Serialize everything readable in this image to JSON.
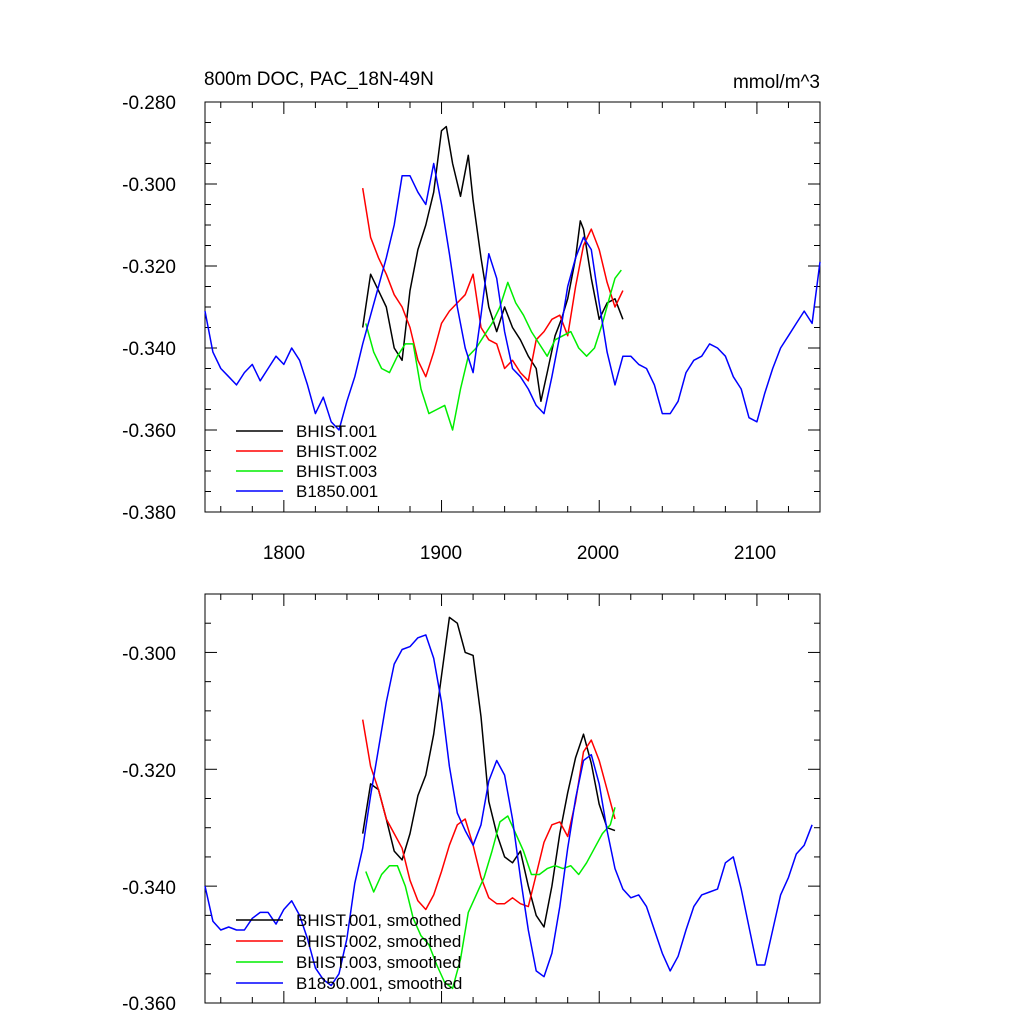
{
  "colors": {
    "BHIST.001": "#000000",
    "BHIST.002": "#ff0000",
    "BHIST.003": "#00ee00",
    "B1850.001": "#0000ff"
  },
  "top": {
    "title_left": "800m DOC, PAC_18N-49N",
    "title_right": "mmol/m^3",
    "legend": [
      "BHIST.001",
      "BHIST.002",
      "BHIST.003",
      "B1850.001"
    ]
  },
  "bottom": {
    "legend": [
      "BHIST.001, smoothed",
      "BHIST.002, smoothed",
      "BHIST.003, smoothed",
      "B1850.001, smoothed"
    ]
  },
  "chart_data": [
    {
      "type": "line",
      "title": "800m DOC, PAC_18N-49N",
      "units": "mmol/m^3",
      "xlim": [
        1750,
        2140
      ],
      "ylim": [
        -0.38,
        -0.28
      ],
      "xticks": [
        "1800",
        "1900",
        "2000",
        "2100"
      ],
      "yticks": [
        "-0.280",
        "-0.300",
        "-0.320",
        "-0.340",
        "-0.360",
        "-0.380"
      ],
      "legend_position": "bottom-left",
      "series": [
        {
          "name": "BHIST.001",
          "x": [
            1850,
            1855,
            1860,
            1865,
            1870,
            1875,
            1880,
            1885,
            1890,
            1895,
            1900,
            1903,
            1907,
            1912,
            1917,
            1920,
            1925,
            1930,
            1935,
            1940,
            1945,
            1950,
            1955,
            1960,
            1963,
            1967,
            1972,
            1976,
            1980,
            1985,
            1988,
            1990,
            1995,
            2000,
            2005,
            2010,
            2015
          ],
          "y": [
            -0.335,
            -0.322,
            -0.326,
            -0.33,
            -0.34,
            -0.343,
            -0.326,
            -0.316,
            -0.31,
            -0.302,
            -0.287,
            -0.286,
            -0.295,
            -0.303,
            -0.293,
            -0.304,
            -0.318,
            -0.33,
            -0.336,
            -0.33,
            -0.335,
            -0.338,
            -0.342,
            -0.345,
            -0.353,
            -0.346,
            -0.337,
            -0.333,
            -0.328,
            -0.318,
            -0.309,
            -0.311,
            -0.323,
            -0.333,
            -0.329,
            -0.328,
            -0.333
          ]
        },
        {
          "name": "BHIST.002",
          "x": [
            1850,
            1855,
            1860,
            1865,
            1870,
            1875,
            1880,
            1885,
            1890,
            1895,
            1900,
            1905,
            1910,
            1915,
            1920,
            1925,
            1930,
            1935,
            1940,
            1945,
            1950,
            1955,
            1960,
            1965,
            1970,
            1975,
            1980,
            1985,
            1990,
            1995,
            2000,
            2005,
            2010,
            2015
          ],
          "y": [
            -0.301,
            -0.313,
            -0.318,
            -0.322,
            -0.327,
            -0.33,
            -0.335,
            -0.343,
            -0.347,
            -0.341,
            -0.334,
            -0.331,
            -0.329,
            -0.327,
            -0.322,
            -0.335,
            -0.338,
            -0.339,
            -0.345,
            -0.343,
            -0.346,
            -0.348,
            -0.338,
            -0.336,
            -0.333,
            -0.332,
            -0.337,
            -0.325,
            -0.315,
            -0.311,
            -0.316,
            -0.324,
            -0.33,
            -0.326
          ]
        },
        {
          "name": "BHIST.003",
          "x": [
            1852,
            1857,
            1862,
            1867,
            1872,
            1877,
            1882,
            1887,
            1892,
            1897,
            1902,
            1907,
            1912,
            1917,
            1922,
            1927,
            1932,
            1937,
            1942,
            1947,
            1952,
            1957,
            1962,
            1967,
            1972,
            1977,
            1982,
            1987,
            1992,
            1997,
            2002,
            2007,
            2010,
            2014
          ],
          "y": [
            -0.334,
            -0.341,
            -0.345,
            -0.346,
            -0.342,
            -0.339,
            -0.339,
            -0.35,
            -0.356,
            -0.355,
            -0.354,
            -0.36,
            -0.35,
            -0.342,
            -0.34,
            -0.337,
            -0.334,
            -0.33,
            -0.324,
            -0.329,
            -0.332,
            -0.336,
            -0.339,
            -0.342,
            -0.338,
            -0.337,
            -0.336,
            -0.34,
            -0.342,
            -0.34,
            -0.334,
            -0.327,
            -0.323,
            -0.321
          ]
        },
        {
          "name": "B1850.001",
          "x": [
            1750,
            1755,
            1760,
            1765,
            1770,
            1775,
            1780,
            1785,
            1790,
            1795,
            1800,
            1805,
            1810,
            1815,
            1820,
            1825,
            1830,
            1835,
            1840,
            1845,
            1850,
            1855,
            1860,
            1865,
            1870,
            1875,
            1880,
            1885,
            1890,
            1895,
            1900,
            1905,
            1910,
            1915,
            1920,
            1925,
            1930,
            1935,
            1940,
            1945,
            1950,
            1955,
            1960,
            1965,
            1970,
            1975,
            1980,
            1985,
            1990,
            1995,
            2000,
            2005,
            2010,
            2015,
            2020,
            2025,
            2030,
            2035,
            2040,
            2045,
            2050,
            2055,
            2060,
            2065,
            2070,
            2075,
            2080,
            2085,
            2090,
            2095,
            2100,
            2105,
            2110,
            2115,
            2120,
            2125,
            2130,
            2135,
            2140
          ],
          "y": [
            -0.331,
            -0.341,
            -0.345,
            -0.347,
            -0.349,
            -0.346,
            -0.344,
            -0.348,
            -0.345,
            -0.342,
            -0.344,
            -0.34,
            -0.343,
            -0.349,
            -0.356,
            -0.352,
            -0.358,
            -0.36,
            -0.353,
            -0.347,
            -0.339,
            -0.332,
            -0.325,
            -0.318,
            -0.31,
            -0.298,
            -0.298,
            -0.302,
            -0.305,
            -0.295,
            -0.305,
            -0.317,
            -0.33,
            -0.34,
            -0.346,
            -0.332,
            -0.317,
            -0.323,
            -0.336,
            -0.345,
            -0.347,
            -0.35,
            -0.354,
            -0.356,
            -0.347,
            -0.337,
            -0.325,
            -0.318,
            -0.313,
            -0.316,
            -0.329,
            -0.341,
            -0.349,
            -0.342,
            -0.342,
            -0.344,
            -0.345,
            -0.349,
            -0.356,
            -0.356,
            -0.353,
            -0.346,
            -0.343,
            -0.342,
            -0.339,
            -0.34,
            -0.342,
            -0.347,
            -0.35,
            -0.357,
            -0.358,
            -0.351,
            -0.345,
            -0.34,
            -0.337,
            -0.334,
            -0.331,
            -0.334,
            -0.319
          ]
        }
      ]
    },
    {
      "type": "line",
      "xlim": [
        1750,
        2140
      ],
      "ylim": [
        -0.36,
        -0.29
      ],
      "yticks": [
        "-0.300",
        "-0.320",
        "-0.340",
        "-0.360"
      ],
      "legend_position": "bottom-left",
      "series": [
        {
          "name": "BHIST.001, smoothed",
          "x": [
            1850,
            1855,
            1860,
            1865,
            1870,
            1875,
            1880,
            1885,
            1890,
            1895,
            1900,
            1905,
            1910,
            1915,
            1920,
            1925,
            1930,
            1935,
            1940,
            1945,
            1950,
            1955,
            1960,
            1965,
            1970,
            1975,
            1980,
            1985,
            1990,
            1995,
            2000,
            2005,
            2010
          ],
          "y": [
            -0.331,
            -0.3225,
            -0.3235,
            -0.3285,
            -0.334,
            -0.3355,
            -0.331,
            -0.3245,
            -0.321,
            -0.314,
            -0.304,
            -0.294,
            -0.295,
            -0.3,
            -0.3005,
            -0.311,
            -0.3255,
            -0.331,
            -0.335,
            -0.336,
            -0.334,
            -0.34,
            -0.345,
            -0.347,
            -0.34,
            -0.331,
            -0.324,
            -0.318,
            -0.314,
            -0.319,
            -0.326,
            -0.33,
            -0.3305
          ]
        },
        {
          "name": "BHIST.002, smoothed",
          "x": [
            1850,
            1855,
            1860,
            1865,
            1870,
            1875,
            1880,
            1885,
            1890,
            1895,
            1900,
            1905,
            1910,
            1915,
            1920,
            1925,
            1930,
            1935,
            1940,
            1945,
            1950,
            1955,
            1960,
            1965,
            1970,
            1975,
            1980,
            1985,
            1990,
            1995,
            2000,
            2005,
            2010
          ],
          "y": [
            -0.3115,
            -0.3195,
            -0.3235,
            -0.3285,
            -0.331,
            -0.3335,
            -0.339,
            -0.3425,
            -0.344,
            -0.3415,
            -0.3375,
            -0.333,
            -0.3295,
            -0.3285,
            -0.333,
            -0.3385,
            -0.342,
            -0.343,
            -0.343,
            -0.342,
            -0.343,
            -0.3435,
            -0.338,
            -0.3325,
            -0.3295,
            -0.329,
            -0.3315,
            -0.3255,
            -0.317,
            -0.315,
            -0.3185,
            -0.3235,
            -0.3285
          ]
        },
        {
          "name": "BHIST.003, smoothed",
          "x": [
            1852,
            1857,
            1862,
            1867,
            1872,
            1877,
            1882,
            1887,
            1892,
            1897,
            1902,
            1907,
            1912,
            1917,
            1922,
            1927,
            1932,
            1937,
            1942,
            1947,
            1952,
            1957,
            1962,
            1967,
            1972,
            1977,
            1982,
            1987,
            1992,
            1997,
            2002,
            2007,
            2010
          ],
          "y": [
            -0.3375,
            -0.341,
            -0.338,
            -0.3365,
            -0.3365,
            -0.34,
            -0.3455,
            -0.3485,
            -0.35,
            -0.3535,
            -0.3565,
            -0.3575,
            -0.3525,
            -0.3445,
            -0.3415,
            -0.3385,
            -0.334,
            -0.329,
            -0.328,
            -0.331,
            -0.334,
            -0.338,
            -0.338,
            -0.337,
            -0.3365,
            -0.337,
            -0.3365,
            -0.338,
            -0.336,
            -0.3335,
            -0.331,
            -0.3295,
            -0.3265
          ]
        },
        {
          "name": "B1850.001, smoothed",
          "x": [
            1750,
            1755,
            1760,
            1765,
            1770,
            1775,
            1780,
            1785,
            1790,
            1795,
            1800,
            1805,
            1810,
            1815,
            1820,
            1825,
            1830,
            1835,
            1840,
            1845,
            1850,
            1855,
            1860,
            1865,
            1870,
            1875,
            1880,
            1885,
            1890,
            1895,
            1900,
            1905,
            1910,
            1915,
            1920,
            1925,
            1930,
            1935,
            1940,
            1945,
            1950,
            1955,
            1960,
            1965,
            1970,
            1975,
            1980,
            1985,
            1990,
            1995,
            2000,
            2005,
            2010,
            2015,
            2020,
            2025,
            2030,
            2035,
            2040,
            2045,
            2050,
            2055,
            2060,
            2065,
            2070,
            2075,
            2080,
            2085,
            2090,
            2095,
            2100,
            2105,
            2110,
            2115,
            2120,
            2125,
            2130,
            2135
          ],
          "y": [
            -0.34,
            -0.346,
            -0.3475,
            -0.347,
            -0.3475,
            -0.3475,
            -0.3455,
            -0.3445,
            -0.3445,
            -0.3465,
            -0.344,
            -0.3425,
            -0.345,
            -0.349,
            -0.354,
            -0.356,
            -0.357,
            -0.355,
            -0.349,
            -0.3395,
            -0.3335,
            -0.3245,
            -0.3165,
            -0.3085,
            -0.302,
            -0.2995,
            -0.299,
            -0.2975,
            -0.297,
            -0.301,
            -0.3085,
            -0.3195,
            -0.3275,
            -0.3305,
            -0.333,
            -0.3295,
            -0.322,
            -0.3185,
            -0.321,
            -0.3285,
            -0.3385,
            -0.3475,
            -0.3545,
            -0.3555,
            -0.3515,
            -0.3435,
            -0.3335,
            -0.325,
            -0.3185,
            -0.3175,
            -0.3225,
            -0.3305,
            -0.337,
            -0.3405,
            -0.342,
            -0.3415,
            -0.3435,
            -0.3475,
            -0.3515,
            -0.3545,
            -0.352,
            -0.3475,
            -0.3435,
            -0.3415,
            -0.341,
            -0.3405,
            -0.336,
            -0.335,
            -0.3405,
            -0.347,
            -0.3535,
            -0.3535,
            -0.3475,
            -0.3415,
            -0.3385,
            -0.3345,
            -0.333,
            -0.3295
          ]
        }
      ]
    }
  ]
}
